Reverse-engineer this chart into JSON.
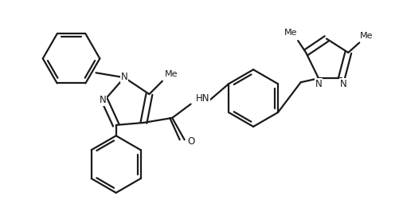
{
  "bg_color": "#ffffff",
  "line_color": "#1a1a1a",
  "line_width": 1.6,
  "figsize": [
    5.02,
    2.76
  ],
  "dpi": 100,
  "xlim": [
    0,
    10
  ],
  "ylim": [
    0,
    5.5
  ]
}
